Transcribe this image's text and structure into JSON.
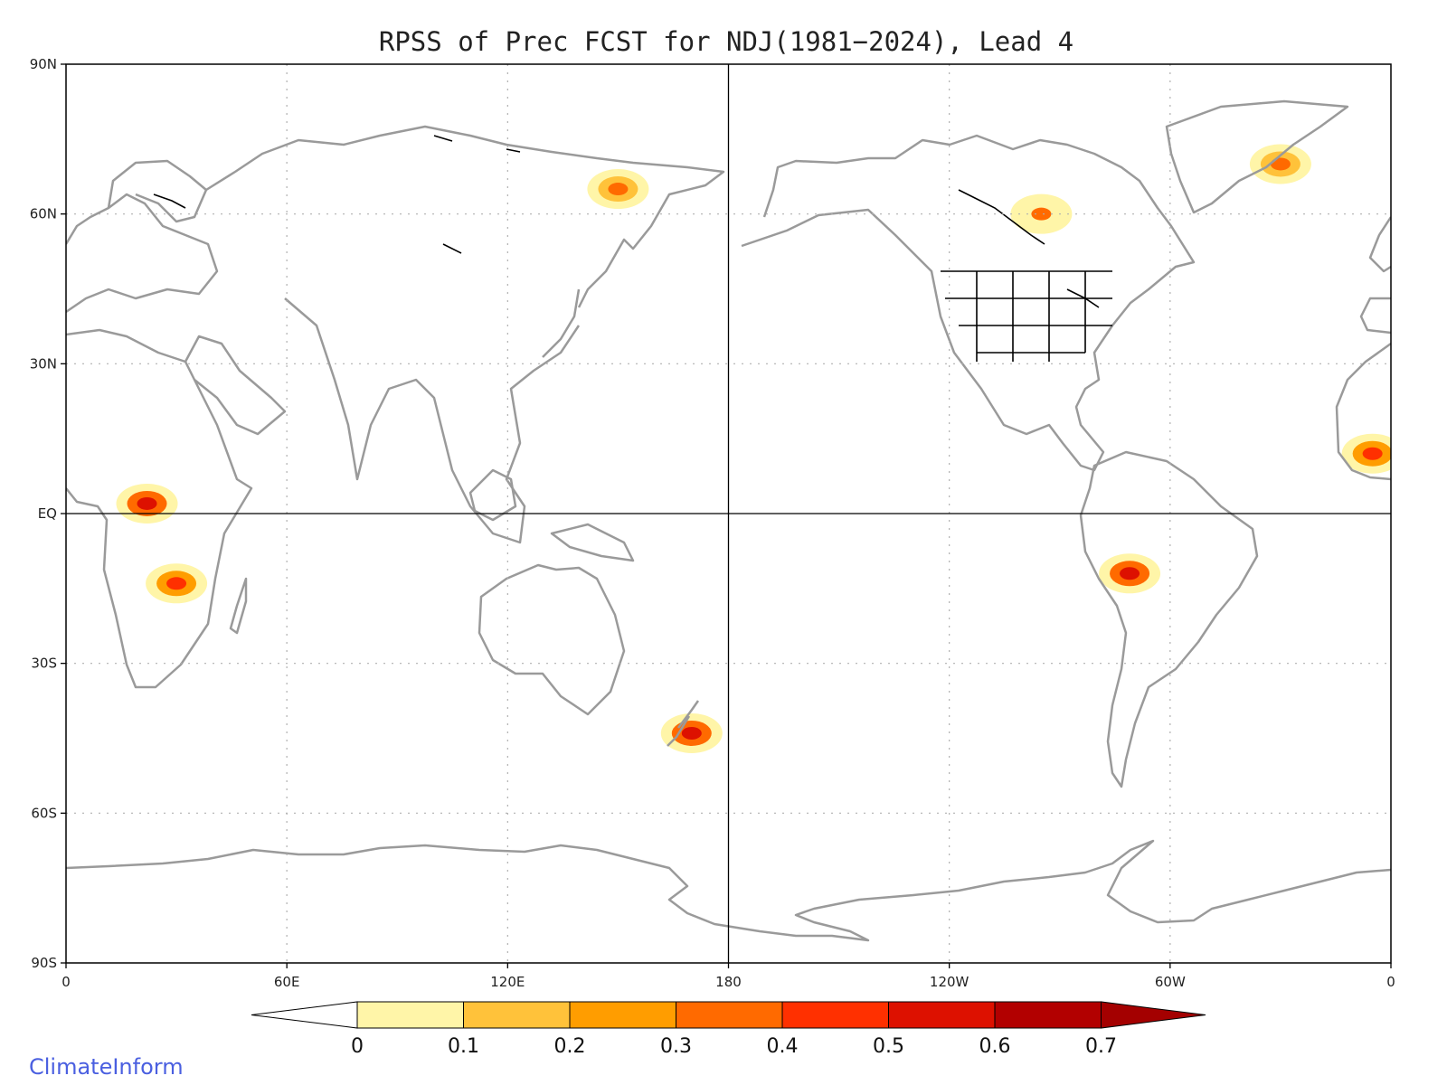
{
  "title": "RPSS of Prec FCST for NDJ(1981−2024), Lead 4",
  "credit": "ClimateInform",
  "map": {
    "projection": "equirectangular",
    "lon_range": [
      0,
      360
    ],
    "lat_range": [
      -90,
      90
    ],
    "lat_ticks": [
      {
        "value": 90,
        "label": "90N"
      },
      {
        "value": 60,
        "label": "60N"
      },
      {
        "value": 30,
        "label": "30N"
      },
      {
        "value": 0,
        "label": "EQ"
      },
      {
        "value": -30,
        "label": "30S"
      },
      {
        "value": -60,
        "label": "60S"
      },
      {
        "value": -90,
        "label": "90S"
      }
    ],
    "lon_ticks": [
      {
        "value": 0,
        "label": "0"
      },
      {
        "value": 60,
        "label": "60E"
      },
      {
        "value": 120,
        "label": "120E"
      },
      {
        "value": 180,
        "label": "180"
      },
      {
        "value": 240,
        "label": "120W"
      },
      {
        "value": 300,
        "label": "60W"
      },
      {
        "value": 360,
        "label": "0"
      }
    ],
    "gridlines": "dotted",
    "reference_lines": [
      "equator",
      "dateline"
    ],
    "land_outline_color": "#9a9a9a",
    "lake_outline_color": "#000000"
  },
  "colorbar": {
    "orientation": "horizontal",
    "placement": "bottom",
    "below_color": "#ffffff",
    "bins": [
      {
        "from": 0,
        "to": 0.1,
        "color": "#fff5a8"
      },
      {
        "from": 0.1,
        "to": 0.2,
        "color": "#ffc23a"
      },
      {
        "from": 0.2,
        "to": 0.3,
        "color": "#ff9d00"
      },
      {
        "from": 0.3,
        "to": 0.4,
        "color": "#ff6a00"
      },
      {
        "from": 0.4,
        "to": 0.5,
        "color": "#ff3000"
      },
      {
        "from": 0.5,
        "to": 0.6,
        "color": "#dd1100"
      },
      {
        "from": 0.6,
        "to": 0.7,
        "color": "#b20000"
      }
    ],
    "above_color": "#a40000",
    "tick_labels": [
      "0",
      "0.1",
      "0.2",
      "0.3",
      "0.4",
      "0.5",
      "0.6",
      "0.7"
    ]
  },
  "regions": [
    {
      "name": "central-africa-hotspot",
      "lon": 22,
      "lat": 2,
      "value": 0.55
    },
    {
      "name": "southern-africa-hotspot",
      "lon": 30,
      "lat": -14,
      "value": 0.45
    },
    {
      "name": "east-siberia-hotspot",
      "lon": 150,
      "lat": 65,
      "value": 0.35
    },
    {
      "name": "new-zealand-hotspot",
      "lon": 170,
      "lat": -44,
      "value": 0.55
    },
    {
      "name": "andes-hotspot",
      "lon": 289,
      "lat": -12,
      "value": 0.5
    },
    {
      "name": "greenland-east-hotspot",
      "lon": 330,
      "lat": 70,
      "value": 0.35
    },
    {
      "name": "hudson-bay-area",
      "lon": 265,
      "lat": 60,
      "value": 0.3
    },
    {
      "name": "west-africa-coast",
      "lon": 355,
      "lat": 12,
      "value": 0.4
    }
  ]
}
